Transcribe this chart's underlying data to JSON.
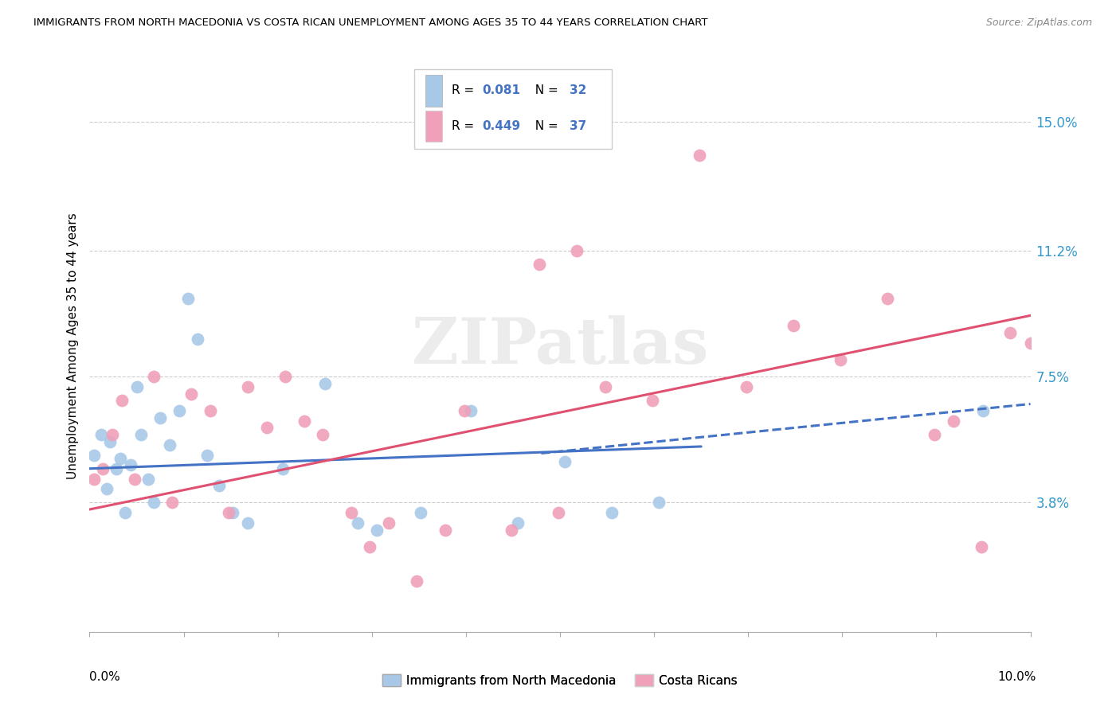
{
  "title": "IMMIGRANTS FROM NORTH MACEDONIA VS COSTA RICAN UNEMPLOYMENT AMONG AGES 35 TO 44 YEARS CORRELATION CHART",
  "source": "Source: ZipAtlas.com",
  "ylabel": "Unemployment Among Ages 35 to 44 years",
  "yticks_right": [
    3.8,
    7.5,
    11.2,
    15.0
  ],
  "ytick_labels_right": [
    "3.8%",
    "7.5%",
    "11.2%",
    "15.0%"
  ],
  "xmin": 0.0,
  "xmax": 10.0,
  "ymin": 0.0,
  "ymax": 16.8,
  "blue_R": 0.081,
  "blue_N": 32,
  "pink_R": 0.449,
  "pink_N": 37,
  "blue_color": "#a8c8e8",
  "pink_color": "#f0a0b8",
  "blue_line_color": "#4472c4",
  "pink_line_color": "#e05070",
  "accent_color": "#3399cc",
  "blue_scatter_x": [
    0.05,
    0.12,
    0.18,
    0.22,
    0.28,
    0.33,
    0.38,
    0.44,
    0.5,
    0.55,
    0.62,
    0.68,
    0.75,
    0.85,
    0.95,
    1.05,
    1.15,
    1.25,
    1.38,
    1.52,
    1.68,
    2.05,
    2.5,
    2.85,
    3.05,
    3.52,
    4.05,
    4.55,
    5.05,
    5.55,
    6.05,
    9.5
  ],
  "blue_scatter_y": [
    5.2,
    5.8,
    4.2,
    5.6,
    4.8,
    5.1,
    3.5,
    4.9,
    7.2,
    5.8,
    4.5,
    3.8,
    6.3,
    5.5,
    6.5,
    9.8,
    8.6,
    5.2,
    4.3,
    3.5,
    3.2,
    4.8,
    7.3,
    3.2,
    3.0,
    3.5,
    6.5,
    3.2,
    5.0,
    3.5,
    3.8,
    6.5
  ],
  "pink_scatter_x": [
    0.05,
    0.14,
    0.24,
    0.34,
    0.48,
    0.68,
    0.88,
    1.08,
    1.28,
    1.48,
    1.68,
    1.88,
    2.08,
    2.28,
    2.48,
    2.78,
    2.98,
    3.18,
    3.48,
    3.78,
    3.98,
    4.48,
    4.78,
    4.98,
    5.18,
    5.48,
    5.98,
    6.48,
    6.98,
    7.48,
    7.98,
    8.48,
    8.98,
    9.18,
    9.48,
    9.78,
    10.0
  ],
  "pink_scatter_y": [
    4.5,
    4.8,
    5.8,
    6.8,
    4.5,
    7.5,
    3.8,
    7.0,
    6.5,
    3.5,
    7.2,
    6.0,
    7.5,
    6.2,
    5.8,
    3.5,
    2.5,
    3.2,
    1.5,
    3.0,
    6.5,
    3.0,
    10.8,
    3.5,
    11.2,
    7.2,
    6.8,
    14.0,
    7.2,
    9.0,
    8.0,
    9.8,
    5.8,
    6.2,
    2.5,
    8.8,
    8.5
  ],
  "blue_reg_x0": 0.0,
  "blue_reg_x1": 6.5,
  "blue_reg_y0": 4.8,
  "blue_reg_y1": 5.45,
  "blue_dash_x0": 4.8,
  "blue_dash_x1": 10.0,
  "blue_dash_y0": 5.25,
  "blue_dash_y1": 6.7,
  "pink_reg_x0": 0.0,
  "pink_reg_x1": 10.0,
  "pink_reg_y0": 3.6,
  "pink_reg_y1": 9.3,
  "watermark": "ZIPatlas"
}
